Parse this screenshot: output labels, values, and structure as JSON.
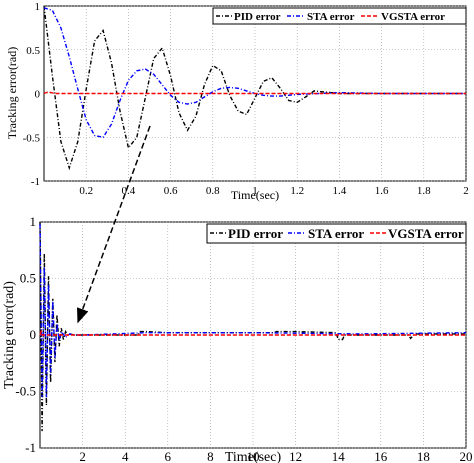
{
  "chart_data": [
    {
      "type": "line",
      "panel": "inset",
      "xlabel": "Time(sec)",
      "ylabel": "Tracking error(rad)",
      "xlim": [
        0,
        2
      ],
      "ylim": [
        -1,
        1
      ],
      "x_ticks": [
        "0.2",
        "0.4",
        "0.6",
        "0.8",
        "1",
        "1.2",
        "1.4",
        "1.6",
        "1.8",
        "2"
      ],
      "y_ticks": [
        "1",
        "0.5",
        "0",
        "-0.5",
        "-1"
      ],
      "grid": true,
      "legend": "top",
      "series": [
        {
          "name": "PID error",
          "color": "#000000",
          "style": "dash-dot",
          "x": [
            0.0,
            0.04,
            0.08,
            0.12,
            0.16,
            0.2,
            0.24,
            0.28,
            0.32,
            0.36,
            0.4,
            0.44,
            0.48,
            0.52,
            0.56,
            0.6,
            0.64,
            0.68,
            0.72,
            0.76,
            0.8,
            0.84,
            0.88,
            0.92,
            0.96,
            1.0,
            1.04,
            1.08,
            1.12,
            1.16,
            1.2,
            1.24,
            1.28,
            1.32,
            1.4,
            1.5,
            1.6,
            1.8,
            2.0
          ],
          "y": [
            1.0,
            0.2,
            -0.55,
            -0.85,
            -0.55,
            0.05,
            0.6,
            0.72,
            0.35,
            -0.2,
            -0.62,
            -0.5,
            -0.05,
            0.4,
            0.52,
            0.2,
            -0.22,
            -0.42,
            -0.26,
            0.1,
            0.32,
            0.26,
            -0.02,
            -0.2,
            -0.24,
            -0.05,
            0.14,
            0.18,
            0.06,
            -0.08,
            -0.1,
            -0.04,
            0.03,
            0.02,
            0.0,
            0.0,
            0.0,
            0.0,
            0.0
          ]
        },
        {
          "name": "STA error",
          "color": "#0000ff",
          "style": "dash-dot",
          "x": [
            0.0,
            0.04,
            0.08,
            0.12,
            0.16,
            0.2,
            0.24,
            0.28,
            0.32,
            0.36,
            0.4,
            0.44,
            0.48,
            0.52,
            0.56,
            0.6,
            0.64,
            0.68,
            0.72,
            0.76,
            0.8,
            0.84,
            0.88,
            0.92,
            0.96,
            1.0,
            1.04,
            1.08,
            1.12,
            1.16,
            1.2,
            1.3,
            1.4,
            1.6,
            1.8,
            2.0
          ],
          "y": [
            0.98,
            0.95,
            0.75,
            0.42,
            0.05,
            -0.3,
            -0.48,
            -0.5,
            -0.35,
            -0.08,
            0.15,
            0.26,
            0.28,
            0.22,
            0.1,
            -0.02,
            -0.1,
            -0.12,
            -0.1,
            -0.04,
            0.02,
            0.06,
            0.07,
            0.06,
            0.03,
            0.0,
            -0.02,
            -0.03,
            -0.03,
            -0.02,
            -0.01,
            0.0,
            0.01,
            0.0,
            0.0,
            0.0
          ]
        },
        {
          "name": "VGSTA error",
          "color": "#ff0000",
          "style": "dashed",
          "x": [
            0.0,
            0.02,
            0.05,
            2.0
          ],
          "y": [
            0.0,
            0.02,
            0.0,
            0.0
          ]
        }
      ]
    },
    {
      "type": "line",
      "panel": "main",
      "xlabel": "Time(sec)",
      "ylabel": "Tracking error(rad)",
      "xlim": [
        0,
        20
      ],
      "ylim": [
        -1,
        1
      ],
      "x_ticks": [
        "2",
        "4",
        "6",
        "8",
        "10",
        "12",
        "14",
        "16",
        "18",
        "20"
      ],
      "y_ticks": [
        "1",
        "0.5",
        "0",
        "-0.5",
        "-1"
      ],
      "grid": true,
      "legend": "top-right",
      "series": [
        {
          "name": "PID error",
          "color": "#000000",
          "style": "dash-dot",
          "x": [
            0.0,
            0.1,
            0.2,
            0.3,
            0.4,
            0.5,
            0.6,
            0.7,
            0.8,
            0.9,
            1.0,
            1.1,
            1.2,
            1.3,
            1.4,
            1.6,
            2.0,
            4.6,
            4.7,
            5.0,
            6.0,
            8.0,
            10.0,
            11.0,
            11.1,
            12.0,
            13.9,
            14.0,
            14.2,
            14.3,
            17.3,
            17.4,
            17.6,
            20.0
          ],
          "y": [
            1.0,
            -0.85,
            0.72,
            -0.62,
            0.52,
            -0.42,
            0.32,
            -0.24,
            0.18,
            -0.1,
            0.06,
            -0.04,
            0.03,
            0.0,
            0.01,
            0.0,
            0.0,
            0.0,
            0.03,
            0.03,
            0.02,
            0.02,
            0.02,
            0.02,
            0.03,
            0.03,
            0.02,
            -0.04,
            -0.04,
            0.0,
            0.0,
            -0.03,
            0.01,
            0.01
          ]
        },
        {
          "name": "STA error",
          "color": "#0000ff",
          "style": "dash-dot",
          "x": [
            0.0,
            0.1,
            0.2,
            0.3,
            0.4,
            0.5,
            0.6,
            0.7,
            0.8,
            0.9,
            1.0,
            1.2,
            1.4,
            1.6,
            2.0,
            5.0,
            10.0,
            15.0,
            20.0
          ],
          "y": [
            0.98,
            -0.55,
            0.6,
            -0.55,
            0.45,
            -0.35,
            0.3,
            -0.2,
            0.1,
            -0.05,
            0.03,
            -0.02,
            0.01,
            0.0,
            0.0,
            0.02,
            0.02,
            0.01,
            0.02
          ]
        },
        {
          "name": "VGSTA error",
          "color": "#ff0000",
          "style": "dashed",
          "x": [
            0.0,
            0.05,
            0.1,
            20.0
          ],
          "y": [
            0.0,
            0.03,
            0.0,
            0.0
          ]
        }
      ]
    }
  ]
}
